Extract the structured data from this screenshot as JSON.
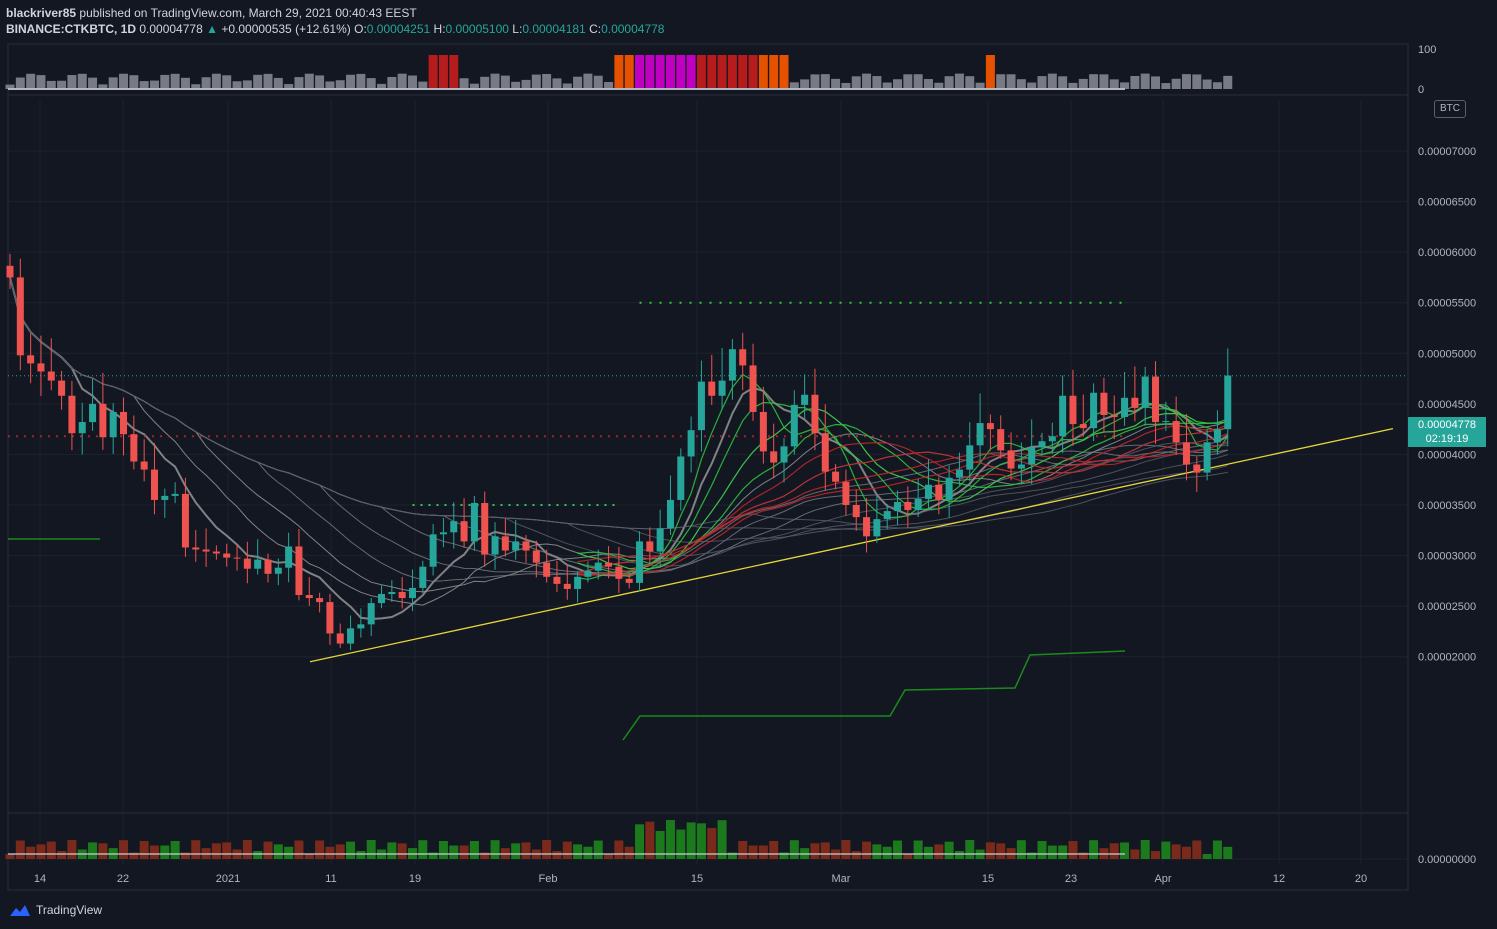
{
  "header": {
    "line1": {
      "user": "blackriver85",
      "text": " published on TradingView.com, March 29, 2021 00:40:43 EEST"
    },
    "line2": {
      "symbol": "BINANCE:CTKBTC, 1D",
      "price": "0.00004778",
      "change": "+0.00000535 (+12.61%)",
      "o_label": "O:",
      "o_value": "0.00004251",
      "h_label": "H:",
      "h_value": "0.00005100",
      "l_label": "L:",
      "l_value": "0.00004181",
      "c_label": "C:",
      "c_value": "0.00004778"
    }
  },
  "price_tag": {
    "value": "0.00004778",
    "countdown": "02:19:19"
  },
  "currency_badge": "BTC",
  "logo_text": "TradingView",
  "colors": {
    "background": "#131722",
    "up": "#26a69a",
    "down": "#ef5350",
    "trendline": "#e6d63a",
    "signal_green": "#2e7d32",
    "signal_red": "#d50000"
  },
  "chart_data": {
    "type": "candlestick",
    "price_axis": {
      "ticks": [
        "0.00007000",
        "0.00006500",
        "0.00006000",
        "0.00005500",
        "0.00005000",
        "0.00004500",
        "0.00004000",
        "0.00003500",
        "0.00003000",
        "0.00002500",
        "0.00002000",
        "0.00000000"
      ]
    },
    "oscillator_axis": {
      "ticks": [
        "100",
        "0"
      ]
    },
    "x_ticks": [
      "14",
      "22",
      "2021",
      "11",
      "19",
      "Feb",
      "15",
      "Mar",
      "15",
      "23",
      "Apr",
      "12",
      "20"
    ],
    "last_close": 4.778e-05,
    "resistance_level": 5.5e-05,
    "support_level_1": 3.5e-05,
    "mid_level": 4.18e-05,
    "trendline": {
      "from": [
        1.95e-05
      ],
      "to": [
        4.78e-05
      ]
    },
    "closes": [
      5.75e-05,
      4.98e-05,
      4.9e-05,
      4.82e-05,
      4.73e-05,
      4.58e-05,
      4.21e-05,
      4.32e-05,
      4.5e-05,
      4.17e-05,
      4.42e-05,
      4.2e-05,
      3.93e-05,
      3.85e-05,
      3.55e-05,
      3.59e-05,
      3.61e-05,
      3.08e-05,
      3.06e-05,
      3.04e-05,
      3.02e-05,
      2.98e-05,
      2.97e-05,
      2.87e-05,
      2.96e-05,
      2.82e-05,
      2.88e-05,
      3.09e-05,
      2.61e-05,
      2.58e-05,
      2.54e-05,
      2.23e-05,
      2.13e-05,
      2.28e-05,
      2.32e-05,
      2.53e-05,
      2.62e-05,
      2.64e-05,
      2.58e-05,
      2.68e-05,
      2.89e-05,
      3.21e-05,
      3.23e-05,
      3.34e-05,
      3.14e-05,
      3.52e-05,
      3.01e-05,
      3.19e-05,
      3.05e-05,
      3.14e-05,
      3.05e-05,
      2.93e-05,
      2.79e-05,
      2.72e-05,
      2.67e-05,
      2.79e-05,
      2.85e-05,
      2.93e-05,
      2.89e-05,
      2.77e-05,
      2.73e-05,
      3.14e-05,
      3.04e-05,
      3.27e-05,
      3.55e-05,
      3.98e-05,
      4.24e-05,
      4.72e-05,
      4.58e-05,
      4.73e-05,
      5.04e-05,
      4.88e-05,
      4.42e-05,
      4.03e-05,
      3.92e-05,
      4.08e-05,
      4.49e-05,
      4.59e-05,
      4.21e-05,
      3.83e-05,
      3.73e-05,
      3.5e-05,
      3.38e-05,
      3.19e-05,
      3.36e-05,
      3.44e-05,
      3.53e-05,
      3.45e-05,
      3.56e-05,
      3.7e-05,
      3.55e-05,
      3.77e-05,
      3.85e-05,
      4.09e-05,
      4.31e-05,
      4.25e-05,
      4.04e-05,
      3.86e-05,
      3.9e-05,
      4.07e-05,
      4.13e-05,
      4.18e-05,
      4.58e-05,
      4.3e-05,
      4.26e-05,
      4.61e-05,
      4.39e-05,
      4.37e-05,
      4.56e-05,
      4.46e-05,
      4.77e-05,
      4.32e-05,
      4.33e-05,
      4.12e-05,
      3.9e-05,
      3.82e-05,
      4.12e-05,
      4.25e-05,
      4.78e-05
    ]
  }
}
